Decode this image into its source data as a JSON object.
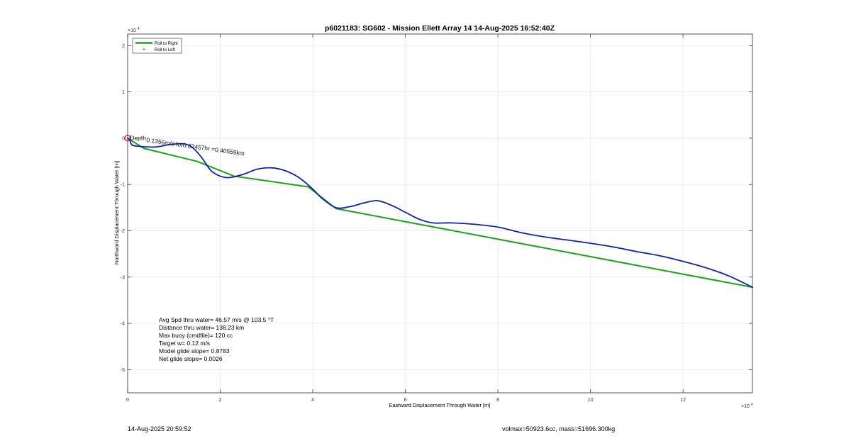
{
  "chart_data": {
    "type": "line",
    "title": "p6021183: SG602 - Mission Ellett Array 14 14-Aug-2025 16:52:40Z",
    "xlabel": "Eastward Displacement Through Water [m]",
    "ylabel": "Northward Displacement Through Water [m]",
    "x_exponent": "×10",
    "x_exponent_power": "4",
    "y_exponent": "×10",
    "y_exponent_power": "4",
    "xlim": [
      0,
      13.5
    ],
    "ylim": [
      -5.5,
      2.25
    ],
    "x_ticks": [
      0,
      2,
      4,
      6,
      8,
      10,
      12
    ],
    "x_tick_labels": [
      "0",
      "2",
      "4",
      "6",
      "8",
      "10",
      "12"
    ],
    "y_ticks": [
      2,
      1,
      0,
      -1,
      -2,
      -3,
      -4,
      -5
    ],
    "y_tick_labels": [
      "2",
      "1",
      "0",
      "-1",
      "-2",
      "-3",
      "-4",
      "-5"
    ],
    "grid": true,
    "legend_position": "top-left",
    "legend": [
      {
        "label": "Roll to Right",
        "color": "#1aa31a",
        "style": "line"
      },
      {
        "label": "Roll to Left",
        "color": "#000000",
        "style": "dot"
      }
    ],
    "series": [
      {
        "name": "Roll to Right",
        "color": "#1aa31a",
        "x": [
          0,
          0.35,
          1.5,
          2.3,
          3.9,
          4.5,
          13.5
        ],
        "y": [
          0,
          -0.22,
          -0.5,
          -0.82,
          -1.05,
          -1.52,
          -3.22
        ]
      },
      {
        "color": "#1020b0",
        "x": [
          0,
          0.05,
          0.1,
          0.3,
          0.6,
          0.9,
          1.2,
          1.4,
          1.6,
          1.8,
          2.0,
          2.2,
          2.5,
          2.8,
          3.1,
          3.4,
          3.7,
          4.0,
          4.2,
          4.5,
          4.8,
          5.1,
          5.4,
          5.7,
          6.0,
          6.3,
          6.6,
          7.0,
          7.5,
          8.0,
          8.5,
          9.0,
          9.5,
          10.0,
          10.5,
          11.0,
          11.5,
          12.0,
          12.5,
          13.0,
          13.5
        ],
        "y": [
          0,
          -0.05,
          -0.15,
          -0.18,
          -0.19,
          -0.14,
          -0.12,
          -0.2,
          -0.42,
          -0.7,
          -0.82,
          -0.85,
          -0.78,
          -0.67,
          -0.64,
          -0.7,
          -0.85,
          -1.1,
          -1.3,
          -1.5,
          -1.48,
          -1.4,
          -1.35,
          -1.45,
          -1.6,
          -1.75,
          -1.83,
          -1.83,
          -1.86,
          -1.92,
          -2.04,
          -2.13,
          -2.2,
          -2.27,
          -2.35,
          -2.45,
          -2.54,
          -2.66,
          -2.8,
          -2.98,
          -3.22
        ]
      }
    ],
    "start_marker": {
      "x": 0,
      "y": 0,
      "color": "#d01010"
    },
    "annotations": [
      {
        "text": "Depth",
        "x": 0.05,
        "y": -0.04,
        "rotation": 0
      },
      {
        "text": "0.1356m/s for0.82457hr =0.40559km",
        "x": 0.4,
        "y": -0.08,
        "rotation": 8
      }
    ],
    "stats": [
      "Avg Spd thru water= 46.57 m/s @ 103.5 °T",
      "Distance thru water= 138.23 km",
      "Max buoy (cmdfile)= 120 cc",
      "Target w= 0.12 m/s",
      "Model glide slope= 0.8783",
      "Net glide slope= 0.0026"
    ]
  },
  "footer": {
    "timestamp": "14-Aug-2025 20:59:52",
    "volmax_mass": "volmax=50923.6cc, mass=51696.300kg"
  }
}
